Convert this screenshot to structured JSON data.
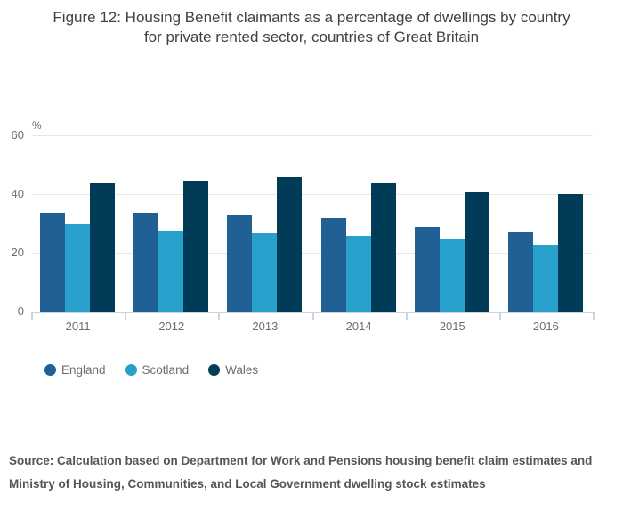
{
  "title": "Figure 12: Housing Benefit claimants as a percentage of dwellings by country for private rented sector, countries of Great Britain",
  "chart_data": {
    "type": "bar",
    "categories": [
      "2011",
      "2012",
      "2013",
      "2014",
      "2015",
      "2016"
    ],
    "series": [
      {
        "name": "England",
        "color": "#206095",
        "values": [
          33.7,
          33.8,
          32.8,
          31.9,
          28.9,
          26.9
        ]
      },
      {
        "name": "Scotland",
        "color": "#27a0cc",
        "values": [
          29.8,
          27.7,
          26.8,
          25.9,
          24.8,
          22.6
        ]
      },
      {
        "name": "Wales",
        "color": "#003c57",
        "values": [
          43.9,
          44.7,
          45.9,
          43.9,
          40.7,
          39.9
        ]
      }
    ],
    "ylabel": "%",
    "yticks": [
      0,
      20,
      40,
      60
    ],
    "ylim": [
      0,
      60
    ],
    "grid": true,
    "legend_position": "bottom",
    "gridline_color": "#e7e7e7",
    "axis_color": "#c7d4e2"
  },
  "source": "Source: Calculation based on Department for Work and Pensions housing benefit claim estimates and Ministry of Housing, Communities, and Local Government dwelling stock estimates"
}
